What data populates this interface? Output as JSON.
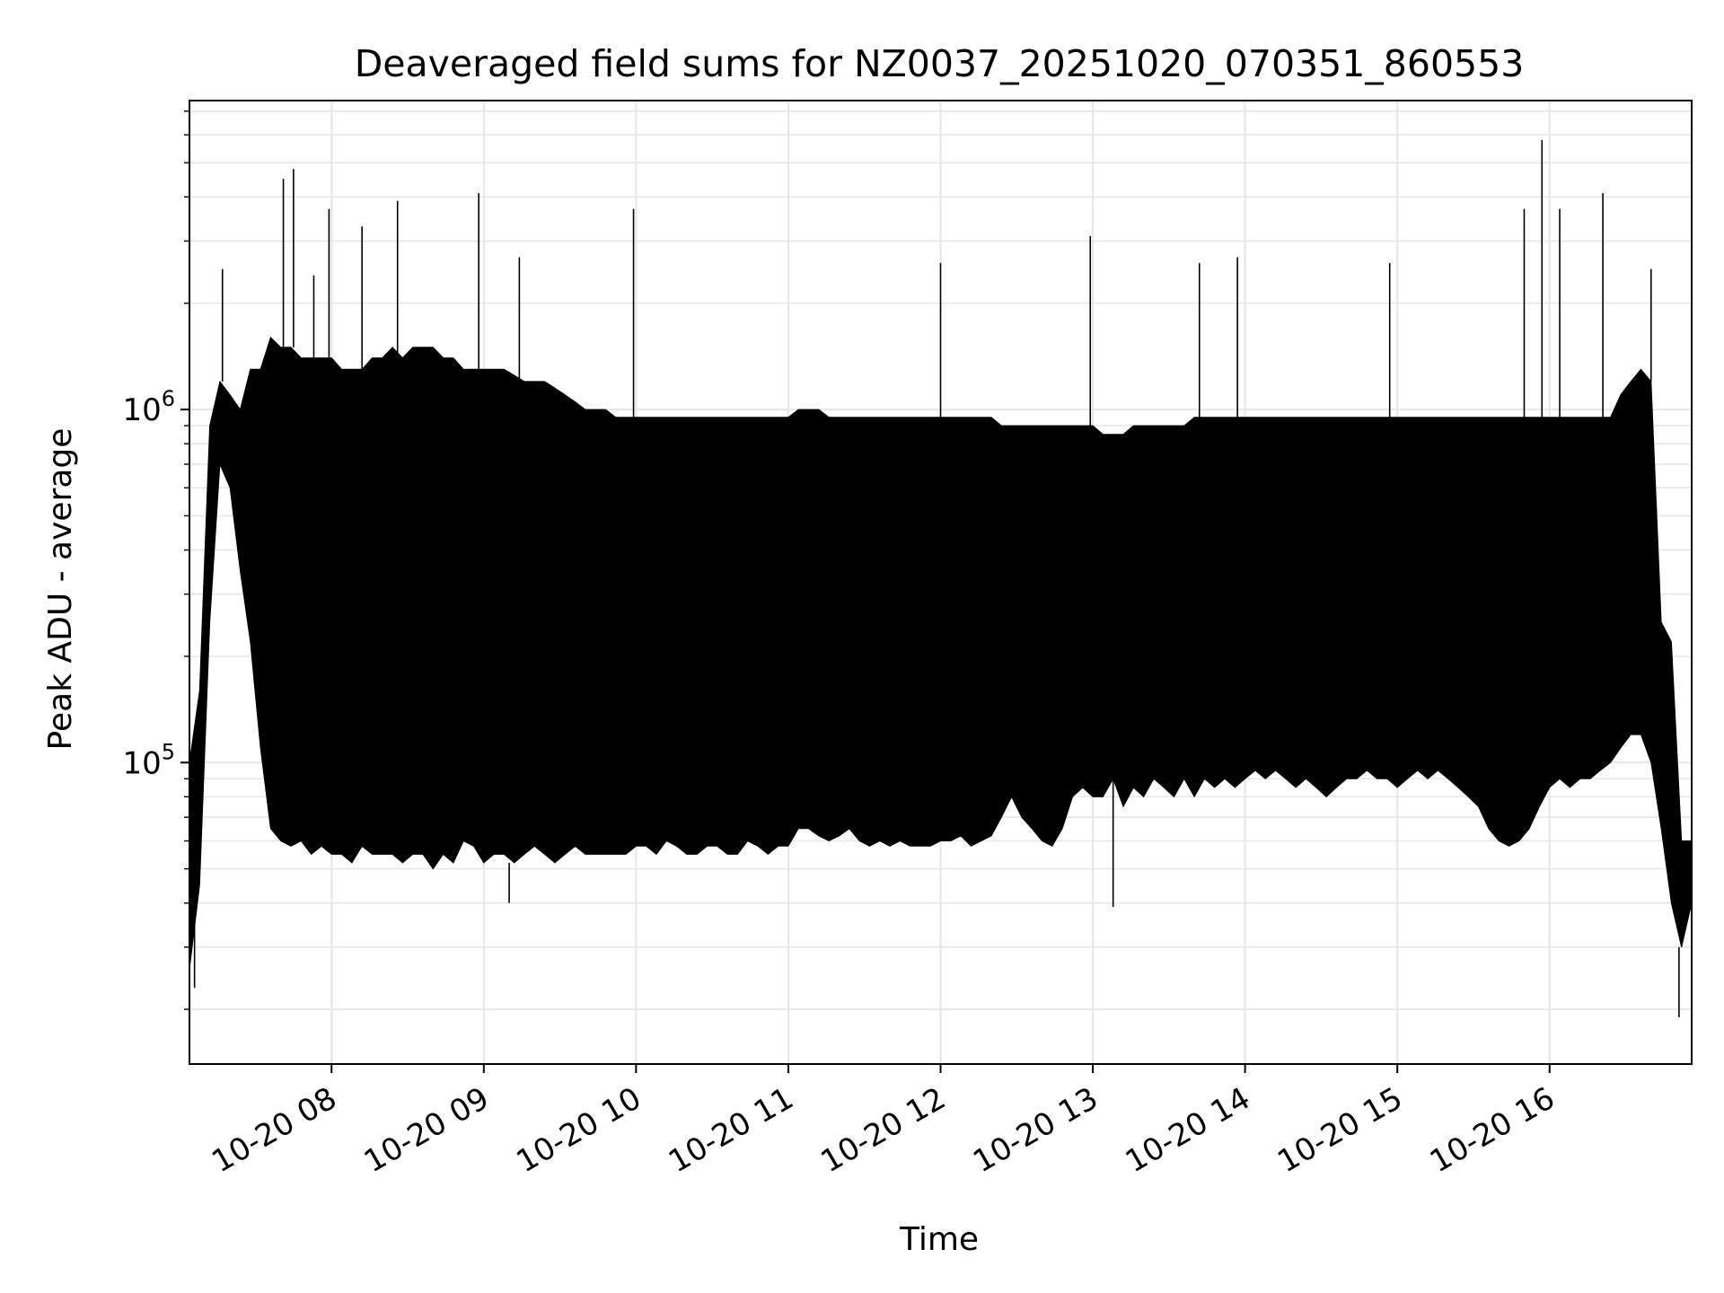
{
  "chart_data": {
    "type": "line",
    "title": "Deaveraged field sums for NZ0037_20251020_070351_860553",
    "xlabel": "Time",
    "ylabel": "Peak ADU - average",
    "yscale": "log",
    "ylim": [
      14000,
      7500000
    ],
    "xlim": [
      "2025-10-20 07:04",
      "2025-10-20 16:56"
    ],
    "grid": true,
    "x_ticks": [
      {
        "label": "10-20 08",
        "value": "2025-10-20 08:00"
      },
      {
        "label": "10-20 09",
        "value": "2025-10-20 09:00"
      },
      {
        "label": "10-20 10",
        "value": "2025-10-20 10:00"
      },
      {
        "label": "10-20 11",
        "value": "2025-10-20 11:00"
      },
      {
        "label": "10-20 12",
        "value": "2025-10-20 12:00"
      },
      {
        "label": "10-20 13",
        "value": "2025-10-20 13:00"
      },
      {
        "label": "10-20 14",
        "value": "2025-10-20 14:00"
      },
      {
        "label": "10-20 15",
        "value": "2025-10-20 15:00"
      },
      {
        "label": "10-20 16",
        "value": "2025-10-20 16:00"
      }
    ],
    "y_ticks": [
      {
        "base": "10",
        "exp": "5",
        "value": 100000
      },
      {
        "base": "10",
        "exp": "6",
        "value": 1000000
      }
    ],
    "series": [
      {
        "color": "#000000",
        "x": [
          "2025-10-20 07:04",
          "2025-10-20 07:08",
          "2025-10-20 07:12",
          "2025-10-20 07:16",
          "2025-10-20 07:20",
          "2025-10-20 07:24",
          "2025-10-20 07:28",
          "2025-10-20 07:32",
          "2025-10-20 07:36",
          "2025-10-20 07:40",
          "2025-10-20 07:44",
          "2025-10-20 07:48",
          "2025-10-20 07:52",
          "2025-10-20 07:56",
          "2025-10-20 08:00",
          "2025-10-20 08:04",
          "2025-10-20 08:08",
          "2025-10-20 08:12",
          "2025-10-20 08:16",
          "2025-10-20 08:20",
          "2025-10-20 08:24",
          "2025-10-20 08:28",
          "2025-10-20 08:32",
          "2025-10-20 08:36",
          "2025-10-20 08:40",
          "2025-10-20 08:44",
          "2025-10-20 08:48",
          "2025-10-20 08:52",
          "2025-10-20 08:56",
          "2025-10-20 09:00",
          "2025-10-20 09:04",
          "2025-10-20 09:08",
          "2025-10-20 09:12",
          "2025-10-20 09:16",
          "2025-10-20 09:20",
          "2025-10-20 09:24",
          "2025-10-20 09:28",
          "2025-10-20 09:32",
          "2025-10-20 09:36",
          "2025-10-20 09:40",
          "2025-10-20 09:44",
          "2025-10-20 09:48",
          "2025-10-20 09:52",
          "2025-10-20 09:56",
          "2025-10-20 10:00",
          "2025-10-20 10:04",
          "2025-10-20 10:08",
          "2025-10-20 10:12",
          "2025-10-20 10:16",
          "2025-10-20 10:20",
          "2025-10-20 10:24",
          "2025-10-20 10:28",
          "2025-10-20 10:32",
          "2025-10-20 10:36",
          "2025-10-20 10:40",
          "2025-10-20 10:44",
          "2025-10-20 10:48",
          "2025-10-20 10:52",
          "2025-10-20 10:56",
          "2025-10-20 11:00",
          "2025-10-20 11:04",
          "2025-10-20 11:08",
          "2025-10-20 11:12",
          "2025-10-20 11:16",
          "2025-10-20 11:20",
          "2025-10-20 11:24",
          "2025-10-20 11:28",
          "2025-10-20 11:32",
          "2025-10-20 11:36",
          "2025-10-20 11:40",
          "2025-10-20 11:44",
          "2025-10-20 11:48",
          "2025-10-20 11:52",
          "2025-10-20 11:56",
          "2025-10-20 12:00",
          "2025-10-20 12:04",
          "2025-10-20 12:08",
          "2025-10-20 12:12",
          "2025-10-20 12:16",
          "2025-10-20 12:20",
          "2025-10-20 12:24",
          "2025-10-20 12:28",
          "2025-10-20 12:32",
          "2025-10-20 12:36",
          "2025-10-20 12:40",
          "2025-10-20 12:44",
          "2025-10-20 12:48",
          "2025-10-20 12:52",
          "2025-10-20 12:56",
          "2025-10-20 13:00",
          "2025-10-20 13:04",
          "2025-10-20 13:08",
          "2025-10-20 13:12",
          "2025-10-20 13:16",
          "2025-10-20 13:20",
          "2025-10-20 13:24",
          "2025-10-20 13:28",
          "2025-10-20 13:32",
          "2025-10-20 13:36",
          "2025-10-20 13:40",
          "2025-10-20 13:44",
          "2025-10-20 13:48",
          "2025-10-20 13:52",
          "2025-10-20 13:56",
          "2025-10-20 14:00",
          "2025-10-20 14:04",
          "2025-10-20 14:08",
          "2025-10-20 14:12",
          "2025-10-20 14:16",
          "2025-10-20 14:20",
          "2025-10-20 14:24",
          "2025-10-20 14:28",
          "2025-10-20 14:32",
          "2025-10-20 14:36",
          "2025-10-20 14:40",
          "2025-10-20 14:44",
          "2025-10-20 14:48",
          "2025-10-20 14:52",
          "2025-10-20 14:56",
          "2025-10-20 15:00",
          "2025-10-20 15:04",
          "2025-10-20 15:08",
          "2025-10-20 15:12",
          "2025-10-20 15:16",
          "2025-10-20 15:20",
          "2025-10-20 15:24",
          "2025-10-20 15:28",
          "2025-10-20 15:32",
          "2025-10-20 15:36",
          "2025-10-20 15:40",
          "2025-10-20 15:44",
          "2025-10-20 15:48",
          "2025-10-20 15:52",
          "2025-10-20 15:56",
          "2025-10-20 16:00",
          "2025-10-20 16:04",
          "2025-10-20 16:08",
          "2025-10-20 16:12",
          "2025-10-20 16:16",
          "2025-10-20 16:20",
          "2025-10-20 16:24",
          "2025-10-20 16:28",
          "2025-10-20 16:32",
          "2025-10-20 16:36",
          "2025-10-20 16:40",
          "2025-10-20 16:44",
          "2025-10-20 16:48",
          "2025-10-20 16:52",
          "2025-10-20 16:56"
        ],
        "low": [
          26000,
          45000,
          250000,
          700000,
          600000,
          350000,
          220000,
          110000,
          65000,
          60000,
          58000,
          60000,
          55000,
          58000,
          55000,
          55000,
          52000,
          58000,
          55000,
          55000,
          55000,
          52000,
          55000,
          55000,
          50000,
          55000,
          52000,
          60000,
          58000,
          52000,
          55000,
          55000,
          52000,
          55000,
          58000,
          55000,
          52000,
          55000,
          58000,
          55000,
          55000,
          55000,
          55000,
          55000,
          58000,
          58000,
          55000,
          60000,
          58000,
          55000,
          55000,
          58000,
          58000,
          55000,
          55000,
          60000,
          58000,
          55000,
          58000,
          58000,
          65000,
          65000,
          62000,
          60000,
          62000,
          65000,
          60000,
          58000,
          60000,
          58000,
          60000,
          58000,
          58000,
          58000,
          60000,
          60000,
          62000,
          58000,
          60000,
          62000,
          70000,
          80000,
          70000,
          65000,
          60000,
          58000,
          65000,
          80000,
          85000,
          80000,
          80000,
          90000,
          75000,
          85000,
          80000,
          90000,
          85000,
          80000,
          90000,
          80000,
          90000,
          85000,
          90000,
          85000,
          90000,
          95000,
          90000,
          95000,
          90000,
          85000,
          90000,
          85000,
          80000,
          85000,
          90000,
          90000,
          95000,
          90000,
          90000,
          85000,
          90000,
          95000,
          90000,
          95000,
          90000,
          85000,
          80000,
          75000,
          65000,
          60000,
          58000,
          60000,
          65000,
          75000,
          85000,
          90000,
          85000,
          90000,
          90000,
          95000,
          100000,
          110000,
          120000,
          120000,
          100000,
          65000,
          40000,
          30000,
          40000
        ],
        "high": [
          100000,
          160000,
          900000,
          1200000,
          1100000,
          1000000,
          1300000,
          1300000,
          1600000,
          1500000,
          1500000,
          1400000,
          1400000,
          1400000,
          1400000,
          1300000,
          1300000,
          1300000,
          1400000,
          1400000,
          1500000,
          1400000,
          1500000,
          1500000,
          1500000,
          1400000,
          1400000,
          1300000,
          1300000,
          1300000,
          1300000,
          1300000,
          1250000,
          1200000,
          1200000,
          1200000,
          1150000,
          1100000,
          1050000,
          1000000,
          1000000,
          1000000,
          950000,
          950000,
          950000,
          950000,
          950000,
          950000,
          950000,
          950000,
          950000,
          950000,
          950000,
          950000,
          950000,
          950000,
          950000,
          950000,
          950000,
          950000,
          1000000,
          1000000,
          1000000,
          950000,
          950000,
          950000,
          950000,
          950000,
          950000,
          950000,
          950000,
          950000,
          950000,
          950000,
          950000,
          950000,
          950000,
          950000,
          950000,
          950000,
          900000,
          900000,
          900000,
          900000,
          900000,
          900000,
          900000,
          900000,
          900000,
          900000,
          850000,
          850000,
          850000,
          900000,
          900000,
          900000,
          900000,
          900000,
          900000,
          950000,
          950000,
          950000,
          950000,
          950000,
          950000,
          950000,
          950000,
          950000,
          950000,
          950000,
          950000,
          950000,
          950000,
          950000,
          950000,
          950000,
          950000,
          950000,
          950000,
          950000,
          950000,
          950000,
          950000,
          950000,
          950000,
          950000,
          950000,
          950000,
          950000,
          950000,
          950000,
          950000,
          950000,
          950000,
          950000,
          950000,
          950000,
          950000,
          950000,
          950000,
          950000,
          1100000,
          1200000,
          1300000,
          1200000,
          250000,
          220000,
          60000,
          60000
        ],
        "spikes": [
          {
            "x": "2025-10-20 07:17",
            "y": 2500000
          },
          {
            "x": "2025-10-20 07:41",
            "y": 4500000
          },
          {
            "x": "2025-10-20 07:45",
            "y": 4800000
          },
          {
            "x": "2025-10-20 07:53",
            "y": 2400000
          },
          {
            "x": "2025-10-20 07:59",
            "y": 3700000
          },
          {
            "x": "2025-10-20 08:12",
            "y": 3300000
          },
          {
            "x": "2025-10-20 08:26",
            "y": 3900000
          },
          {
            "x": "2025-10-20 08:58",
            "y": 4100000
          },
          {
            "x": "2025-10-20 09:14",
            "y": 2700000
          },
          {
            "x": "2025-10-20 09:59",
            "y": 3700000
          },
          {
            "x": "2025-10-20 12:00",
            "y": 2600000
          },
          {
            "x": "2025-10-20 12:59",
            "y": 3100000
          },
          {
            "x": "2025-10-20 13:42",
            "y": 2600000
          },
          {
            "x": "2025-10-20 13:57",
            "y": 2700000
          },
          {
            "x": "2025-10-20 14:57",
            "y": 2600000
          },
          {
            "x": "2025-10-20 15:50",
            "y": 3700000
          },
          {
            "x": "2025-10-20 15:57",
            "y": 5800000
          },
          {
            "x": "2025-10-20 16:04",
            "y": 3700000
          },
          {
            "x": "2025-10-20 16:21",
            "y": 4100000
          },
          {
            "x": "2025-10-20 16:40",
            "y": 2500000
          },
          {
            "x": "2025-10-20 16:51",
            "y": 19000
          },
          {
            "x": "2025-10-20 07:06",
            "y": 23000
          },
          {
            "x": "2025-10-20 09:10",
            "y": 40000
          },
          {
            "x": "2025-10-20 13:08",
            "y": 39000
          }
        ]
      }
    ]
  }
}
